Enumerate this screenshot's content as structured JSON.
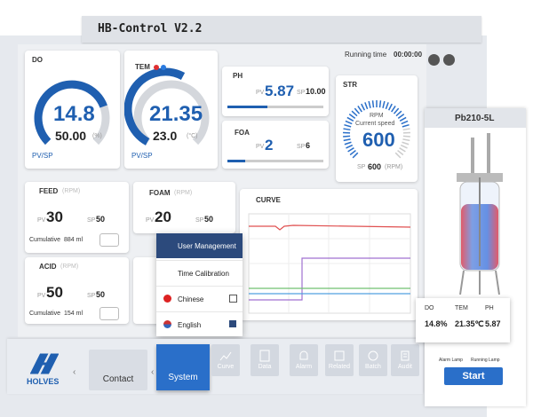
{
  "header": {
    "title": "HB-Control V2.2",
    "running_time_label": "Running time",
    "running_time": "00:00:00"
  },
  "do": {
    "label": "DO",
    "pv": "14.8",
    "sp": "50.00",
    "unit": "(%)",
    "pv_sp": "PV/SP"
  },
  "tem": {
    "label": "TEM",
    "pv": "21.35",
    "sp": "23.0",
    "unit": "(°C)",
    "pv_sp": "PV/SP"
  },
  "ph": {
    "label": "PH",
    "pv_label": "PV",
    "pv": "5.87",
    "sp_label": "SP",
    "sp": "10.00"
  },
  "foa": {
    "label": "FOA",
    "pv_label": "PV",
    "pv": "2",
    "sp_label": "SP",
    "sp": "6"
  },
  "str": {
    "label": "STR",
    "rpm": "RPM",
    "current_speed": "Current speed",
    "pv": "600",
    "sp_label": "SP",
    "sp": "600",
    "unit": "(RPM)"
  },
  "feed": {
    "label": "FEED",
    "unit": "(RPM)",
    "pv_label": "PV",
    "pv": "30",
    "sp_label": "SP",
    "sp": "50",
    "cumulative_label": "Cumulative",
    "cumulative": "884 ml"
  },
  "foam": {
    "label": "FOAM",
    "unit": "(RPM)",
    "pv_label": "PV",
    "pv": "20",
    "sp_label": "SP",
    "sp": "50"
  },
  "acid": {
    "label": "ACID",
    "unit": "(RPM)",
    "pv_label": "PV",
    "pv": "50",
    "sp_label": "SP",
    "sp": "50",
    "cumulative_label": "Cumulative",
    "cumulative": "154 ml"
  },
  "curve": {
    "label": "CURVE"
  },
  "menu": {
    "items": [
      "User Management",
      "Time Calibration",
      "Chinese",
      "English"
    ]
  },
  "device": {
    "model": "Pb210-5L",
    "summary": [
      {
        "label": "DO",
        "value": "14.8%"
      },
      {
        "label": "TEM",
        "value": "21.35℃"
      },
      {
        "label": "PH",
        "value": "5.87"
      }
    ],
    "alarm_lamp": "Alarm Lamp",
    "running_lamp": "Running Lamp",
    "start": "Start"
  },
  "nav": {
    "brand": "HOLVES",
    "items": [
      "Contact",
      "System",
      "Curve",
      "Data",
      "Alarm",
      "Related",
      "Batch",
      "Audit"
    ]
  }
}
